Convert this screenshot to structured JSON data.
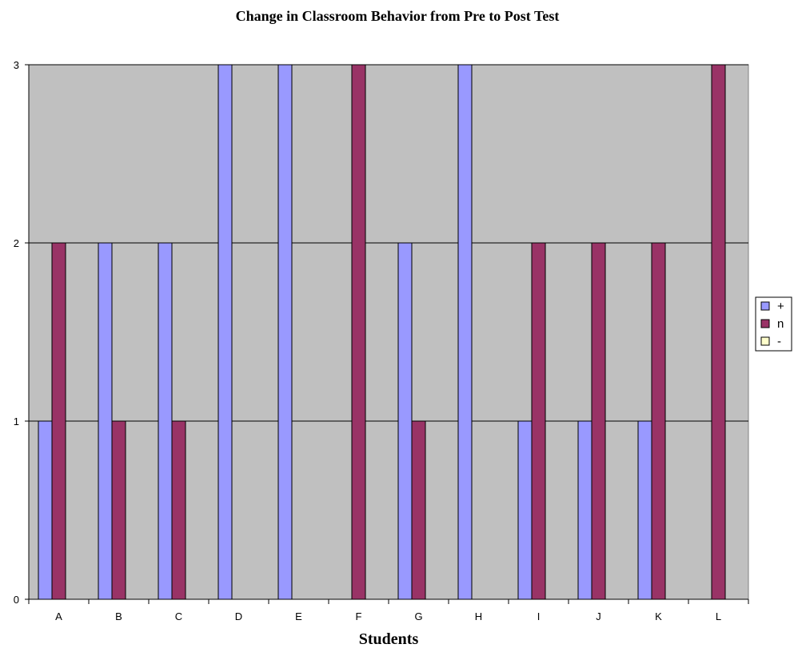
{
  "chart_data": {
    "type": "bar",
    "title": "Change in Classroom Behavior from Pre to Post Test",
    "xlabel": "Students",
    "ylabel": "",
    "categories": [
      "A",
      "B",
      "C",
      "D",
      "E",
      "F",
      "G",
      "H",
      "I",
      "J",
      "K",
      "L"
    ],
    "ylim": [
      0,
      3
    ],
    "yticks": [
      "0",
      "1",
      "2",
      "3"
    ],
    "grid": true,
    "legend_position": "right",
    "series": [
      {
        "name": "+",
        "color": "#9999ff",
        "values": [
          1,
          2,
          2,
          3,
          3,
          0,
          2,
          3,
          1,
          1,
          1,
          0
        ]
      },
      {
        "name": "n",
        "color": "#993366",
        "values": [
          2,
          1,
          1,
          0,
          0,
          3,
          1,
          0,
          2,
          2,
          2,
          3
        ]
      },
      {
        "name": "-",
        "color": "#ffffcc",
        "values": [
          0,
          0,
          0,
          0,
          0,
          0,
          0,
          0,
          0,
          0,
          0,
          0
        ]
      }
    ],
    "plot_background": "#c0c0c0"
  }
}
